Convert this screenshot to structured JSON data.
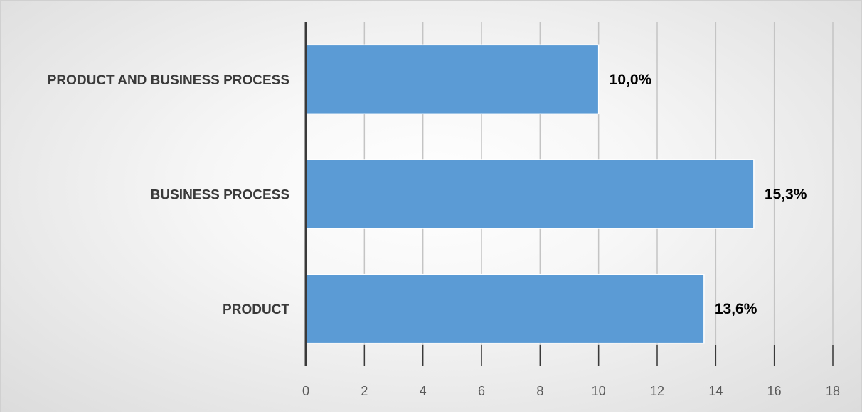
{
  "chart_data": {
    "type": "bar",
    "orientation": "horizontal",
    "categories": [
      "PRODUCT AND BUSINESS PROCESS",
      "BUSINESS PROCESS",
      "PRODUCT"
    ],
    "values": [
      10.0,
      15.3,
      13.6
    ],
    "data_labels": [
      "10,0%",
      "15,3%",
      "13,6%"
    ],
    "x_ticks": [
      "0",
      "2",
      "4",
      "6",
      "8",
      "10",
      "12",
      "14",
      "16",
      "18"
    ],
    "xlim": [
      0,
      18
    ],
    "grid": true,
    "legend": "none",
    "bar_color": "#5b9bd5"
  }
}
